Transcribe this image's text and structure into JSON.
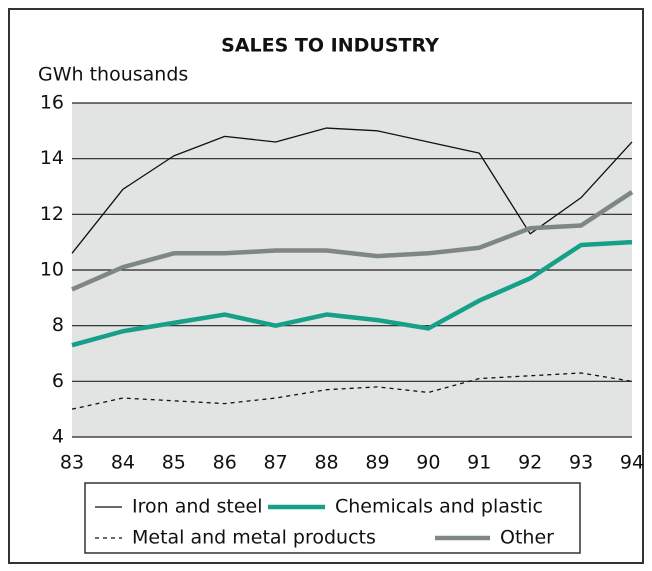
{
  "chart_data": {
    "type": "line",
    "title": "SALES TO INDUSTRY",
    "y_label": "GWh thousands",
    "categories": [
      "83",
      "84",
      "85",
      "86",
      "87",
      "88",
      "89",
      "90",
      "91",
      "92",
      "93",
      "94"
    ],
    "ylim": [
      4,
      16
    ],
    "yticks": [
      4,
      6,
      8,
      10,
      12,
      14,
      16
    ],
    "grid": true,
    "legend": "bottom",
    "series": [
      {
        "name": "Iron and steel",
        "color": "#111111",
        "line_style": "thin",
        "values": [
          10.6,
          12.9,
          14.1,
          14.8,
          14.6,
          15.1,
          15.0,
          14.6,
          14.2,
          11.3,
          12.6,
          14.6
        ]
      },
      {
        "name": "Chemicals and plastic",
        "color": "#16a088",
        "line_style": "thick",
        "values": [
          7.3,
          7.8,
          8.1,
          8.4,
          8.0,
          8.4,
          8.2,
          7.9,
          8.9,
          9.7,
          10.9,
          11.0
        ]
      },
      {
        "name": "Metal and metal products",
        "color": "#111111",
        "line_style": "dashed",
        "values": [
          5.0,
          5.4,
          5.3,
          5.2,
          5.4,
          5.7,
          5.8,
          5.6,
          6.1,
          6.2,
          6.3,
          6.0
        ]
      },
      {
        "name": "Other",
        "color": "#7d8784",
        "line_style": "thick",
        "values": [
          9.3,
          10.1,
          10.6,
          10.6,
          10.7,
          10.7,
          10.5,
          10.6,
          10.8,
          11.5,
          11.6,
          12.8
        ]
      }
    ]
  }
}
